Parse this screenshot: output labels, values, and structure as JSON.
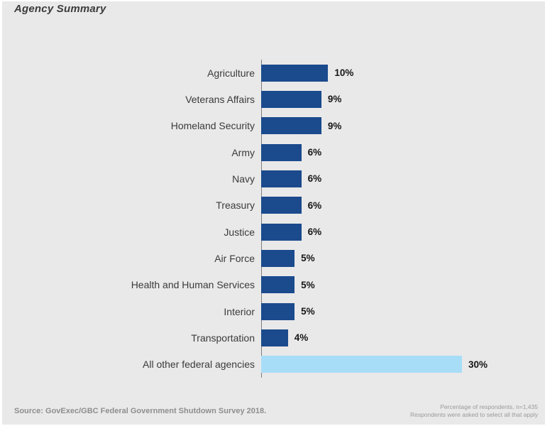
{
  "title": "Agency Summary",
  "chart_data": {
    "type": "bar",
    "orientation": "horizontal",
    "title": "Agency Summary",
    "categories": [
      "Agriculture",
      "Veterans Affairs",
      "Homeland Security",
      "Army",
      "Navy",
      "Treasury",
      "Justice",
      "Air Force",
      "Health and Human Services",
      "Interior",
      "Transportation",
      "All other federal agencies"
    ],
    "values": [
      10,
      9,
      9,
      6,
      6,
      6,
      6,
      5,
      5,
      5,
      4,
      30
    ],
    "value_labels": [
      "10%",
      "9%",
      "9%",
      "6%",
      "6%",
      "6%",
      "6%",
      "5%",
      "5%",
      "5%",
      "4%",
      "30%"
    ],
    "highlight_index": 11,
    "xlim": [
      0,
      30
    ],
    "grid": false,
    "legend": "none",
    "bar_color": "#1b4a8d",
    "highlight_color": "#a8ddf8"
  },
  "colors": {
    "background": "#e9e9e9",
    "axis": "#7d7d7d",
    "title_text": "#3b3b3b",
    "label_text": "#3a3a3a",
    "value_text": "#161616",
    "footer_text": "#8e8e8e"
  },
  "footer": {
    "source": "Source: GovExec/GBC Federal Government Shutdown Survey 2018.",
    "note_line1": "Percentage of respondents, n=1,435",
    "note_line2": "Respondents were asked to select all that apply"
  }
}
